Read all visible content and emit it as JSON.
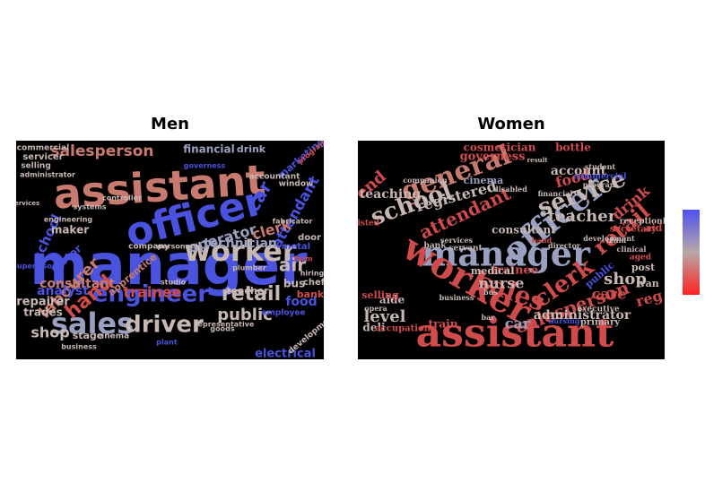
{
  "panels": [
    {
      "title": "Men",
      "words": [
        {
          "t": "manager",
          "c": "#4a52e0"
        },
        {
          "t": "assistant",
          "c": "#c97a6e"
        },
        {
          "t": "officer",
          "c": "#4a52e0"
        },
        {
          "t": "worker",
          "c": "#c8b8b4"
        },
        {
          "t": "engineer",
          "c": "#4a52e0"
        },
        {
          "t": "sales",
          "c": "#9aa0c0"
        },
        {
          "t": "driver",
          "c": "#c8b8b4"
        },
        {
          "t": "retail",
          "c": "#c8b8b4"
        },
        {
          "t": "public",
          "c": "#c8b8b4"
        },
        {
          "t": "hand",
          "c": "#d04c4c"
        },
        {
          "t": "labourer",
          "c": "#c97a6e"
        },
        {
          "t": "air",
          "c": "#c8b8b4"
        },
        {
          "t": "salesperson",
          "c": "#c97a6e"
        },
        {
          "t": "operator",
          "c": "#9aa0c0"
        },
        {
          "t": "car",
          "c": "#4a52e0"
        },
        {
          "t": "attendant",
          "c": "#4a52e0"
        },
        {
          "t": "clerk",
          "c": "#c97a6e"
        },
        {
          "t": "technician",
          "c": "#9aa0c0"
        },
        {
          "t": "trainee",
          "c": "#d04c4c"
        },
        {
          "t": "consultant",
          "c": "#c97a6e"
        },
        {
          "t": "shop",
          "c": "#c8b8b4"
        },
        {
          "t": "school",
          "c": "#4a52e0"
        },
        {
          "t": "analyst",
          "c": "#4a52e0"
        },
        {
          "t": "bus",
          "c": "#c8b8b4"
        },
        {
          "t": "food",
          "c": "#4a52e0"
        },
        {
          "t": "financial",
          "c": "#9aa0c0"
        },
        {
          "t": "drink",
          "c": "#9aa0c0"
        },
        {
          "t": "marketing",
          "c": "#4a52e0"
        },
        {
          "t": "electrical",
          "c": "#4a52e0"
        },
        {
          "t": "repairer",
          "c": "#c8b8b4"
        },
        {
          "t": "trades",
          "c": "#c8b8b4"
        },
        {
          "t": "maker",
          "c": "#c8b8b4"
        },
        {
          "t": "motor",
          "c": "#4a52e0"
        },
        {
          "t": "apprentice",
          "c": "#c97a6e"
        },
        {
          "t": "stage",
          "c": "#c8b8b4"
        },
        {
          "t": "teacher",
          "c": "#c8b8b4"
        },
        {
          "t": "bank",
          "c": "#d04c4c"
        },
        {
          "t": "chef",
          "c": "#c8b8b4"
        },
        {
          "t": "metal",
          "c": "#4a52e0"
        },
        {
          "t": "door",
          "c": "#c8b8b4"
        },
        {
          "t": "commercial",
          "c": "#c8b8b4"
        },
        {
          "t": "servicer",
          "c": "#c8b8b4"
        },
        {
          "t": "selling",
          "c": "#c8b8b4"
        },
        {
          "t": "administrator",
          "c": "#c8b8b4"
        },
        {
          "t": "engineering",
          "c": "#c8b8b4"
        },
        {
          "t": "cinema",
          "c": "#c8b8b4"
        },
        {
          "t": "company",
          "c": "#c8b8b4"
        },
        {
          "t": "governess",
          "c": "#4a52e0"
        },
        {
          "t": "accountant",
          "c": "#c8b8b4"
        },
        {
          "t": "window",
          "c": "#c8b8b4"
        },
        {
          "t": "program",
          "c": "#d04c4c"
        },
        {
          "t": "employee",
          "c": "#4a52e0"
        },
        {
          "t": "business",
          "c": "#c8b8b4"
        },
        {
          "t": "studio",
          "c": "#c8b8b4"
        },
        {
          "t": "plant",
          "c": "#4a52e0"
        },
        {
          "t": "goods",
          "c": "#c8b8b4"
        },
        {
          "t": "plumber",
          "c": "#c8b8b4"
        },
        {
          "t": "personnel",
          "c": "#c8b8b4"
        },
        {
          "t": "farm",
          "c": "#d04c4c"
        },
        {
          "t": "hiring",
          "c": "#c8b8b4"
        },
        {
          "t": "systems",
          "c": "#c8b8b4"
        },
        {
          "t": "controller",
          "c": "#c8b8b4"
        },
        {
          "t": "services",
          "c": "#c8b8b4"
        },
        {
          "t": "supervisor",
          "c": "#4a52e0"
        },
        {
          "t": "fabricator",
          "c": "#c8b8b4"
        },
        {
          "t": "representative",
          "c": "#c8b8b4"
        },
        {
          "t": "development",
          "c": "#c8b8b4"
        },
        {
          "t": "boss",
          "c": "#4a52e0"
        }
      ]
    },
    {
      "title": "Women",
      "words": [
        {
          "t": "assistant",
          "c": "#d04c4c"
        },
        {
          "t": "manager",
          "c": "#9aa0c0"
        },
        {
          "t": "worker",
          "c": "#d04c4c"
        },
        {
          "t": "officer",
          "c": "#9aa0c0"
        },
        {
          "t": "general",
          "c": "#c97a6e"
        },
        {
          "t": "school",
          "c": "#c8b8b4"
        },
        {
          "t": "sales",
          "c": "#d04c4c"
        },
        {
          "t": "clerk",
          "c": "#d04c4c"
        },
        {
          "t": "service",
          "c": "#c8b8b4"
        },
        {
          "t": "retail",
          "c": "#d04c4c"
        },
        {
          "t": "teacher",
          "c": "#c8b8b4"
        },
        {
          "t": "attendant",
          "c": "#d04c4c"
        },
        {
          "t": "salesperson",
          "c": "#d04c4c"
        },
        {
          "t": "registered",
          "c": "#c8b8b4"
        },
        {
          "t": "end",
          "c": "#d04c4c"
        },
        {
          "t": "level",
          "c": "#c8b8b4"
        },
        {
          "t": "nurse",
          "c": "#c8b8b4"
        },
        {
          "t": "car",
          "c": "#9aa0c0"
        },
        {
          "t": "shop",
          "c": "#c8b8b4"
        },
        {
          "t": "care",
          "c": "#d04c4c"
        },
        {
          "t": "reg",
          "c": "#d04c4c"
        },
        {
          "t": "administrator",
          "c": "#c8b8b4"
        },
        {
          "t": "food",
          "c": "#d04c4c"
        },
        {
          "t": "drink",
          "c": "#d04c4c"
        },
        {
          "t": "account",
          "c": "#c8b8b4"
        },
        {
          "t": "governess",
          "c": "#d04c4c"
        },
        {
          "t": "cosmetician",
          "c": "#d04c4c"
        },
        {
          "t": "bottle",
          "c": "#d04c4c"
        },
        {
          "t": "teaching",
          "c": "#c8b8b4"
        },
        {
          "t": "consultant",
          "c": "#c8b8b4"
        },
        {
          "t": "cinema",
          "c": "#9aa0c0"
        },
        {
          "t": "deli",
          "c": "#c8b8b4"
        },
        {
          "t": "aide",
          "c": "#c8b8b4"
        },
        {
          "t": "train",
          "c": "#d04c4c"
        },
        {
          "t": "trainee",
          "c": "#d04c4c"
        },
        {
          "t": "medical",
          "c": "#c8b8b4"
        },
        {
          "t": "selling",
          "c": "#d04c4c"
        },
        {
          "t": "public",
          "c": "#4a52e0"
        },
        {
          "t": "van",
          "c": "#c8b8b4"
        },
        {
          "t": "post",
          "c": "#c8b8b4"
        },
        {
          "t": "aid",
          "c": "#d04c4c"
        },
        {
          "t": "secretary",
          "c": "#d04c4c"
        },
        {
          "t": "occupation",
          "c": "#d04c4c"
        },
        {
          "t": "primary",
          "c": "#c8b8b4"
        },
        {
          "t": "executive",
          "c": "#c8b8b4"
        },
        {
          "t": "servant",
          "c": "#c8b8b4"
        },
        {
          "t": "bank",
          "c": "#c8b8b4"
        },
        {
          "t": "services",
          "c": "#c8b8b4"
        },
        {
          "t": "director",
          "c": "#c8b8b4"
        },
        {
          "t": "hand",
          "c": "#d04c4c"
        },
        {
          "t": "commercial",
          "c": "#4a52e0"
        },
        {
          "t": "student",
          "c": "#c8b8b4"
        },
        {
          "t": "program",
          "c": "#c8b8b4"
        },
        {
          "t": "receptionist",
          "c": "#c8b8b4"
        },
        {
          "t": "aged",
          "c": "#d04c4c"
        },
        {
          "t": "clinical",
          "c": "#c8b8b4"
        },
        {
          "t": "child",
          "c": "#c8b8b4"
        },
        {
          "t": "nursing",
          "c": "#4a52e0"
        },
        {
          "t": "business",
          "c": "#c8b8b4"
        },
        {
          "t": "opera",
          "c": "#c8b8b4"
        },
        {
          "t": "listed",
          "c": "#d04c4c"
        },
        {
          "t": "companion",
          "c": "#c8b8b4"
        },
        {
          "t": "disabled",
          "c": "#c8b8b4"
        },
        {
          "t": "development",
          "c": "#c8b8b4"
        },
        {
          "t": "financial",
          "c": "#c8b8b4"
        },
        {
          "t": "bus",
          "c": "#c8b8b4"
        },
        {
          "t": "bar",
          "c": "#c8b8b4"
        },
        {
          "t": "result",
          "c": "#c8b8b4"
        }
      ]
    }
  ],
  "colors": {
    "red": "#d04c4c",
    "pink": "#c97a6e",
    "beige": "#c8b8b4",
    "lavender": "#9aa0c0",
    "blue": "#4a52e0",
    "background": "#000000"
  },
  "colorbar": {
    "top": "#5050f0",
    "middle": "#b8a8a8",
    "bottom": "#ff2020"
  }
}
